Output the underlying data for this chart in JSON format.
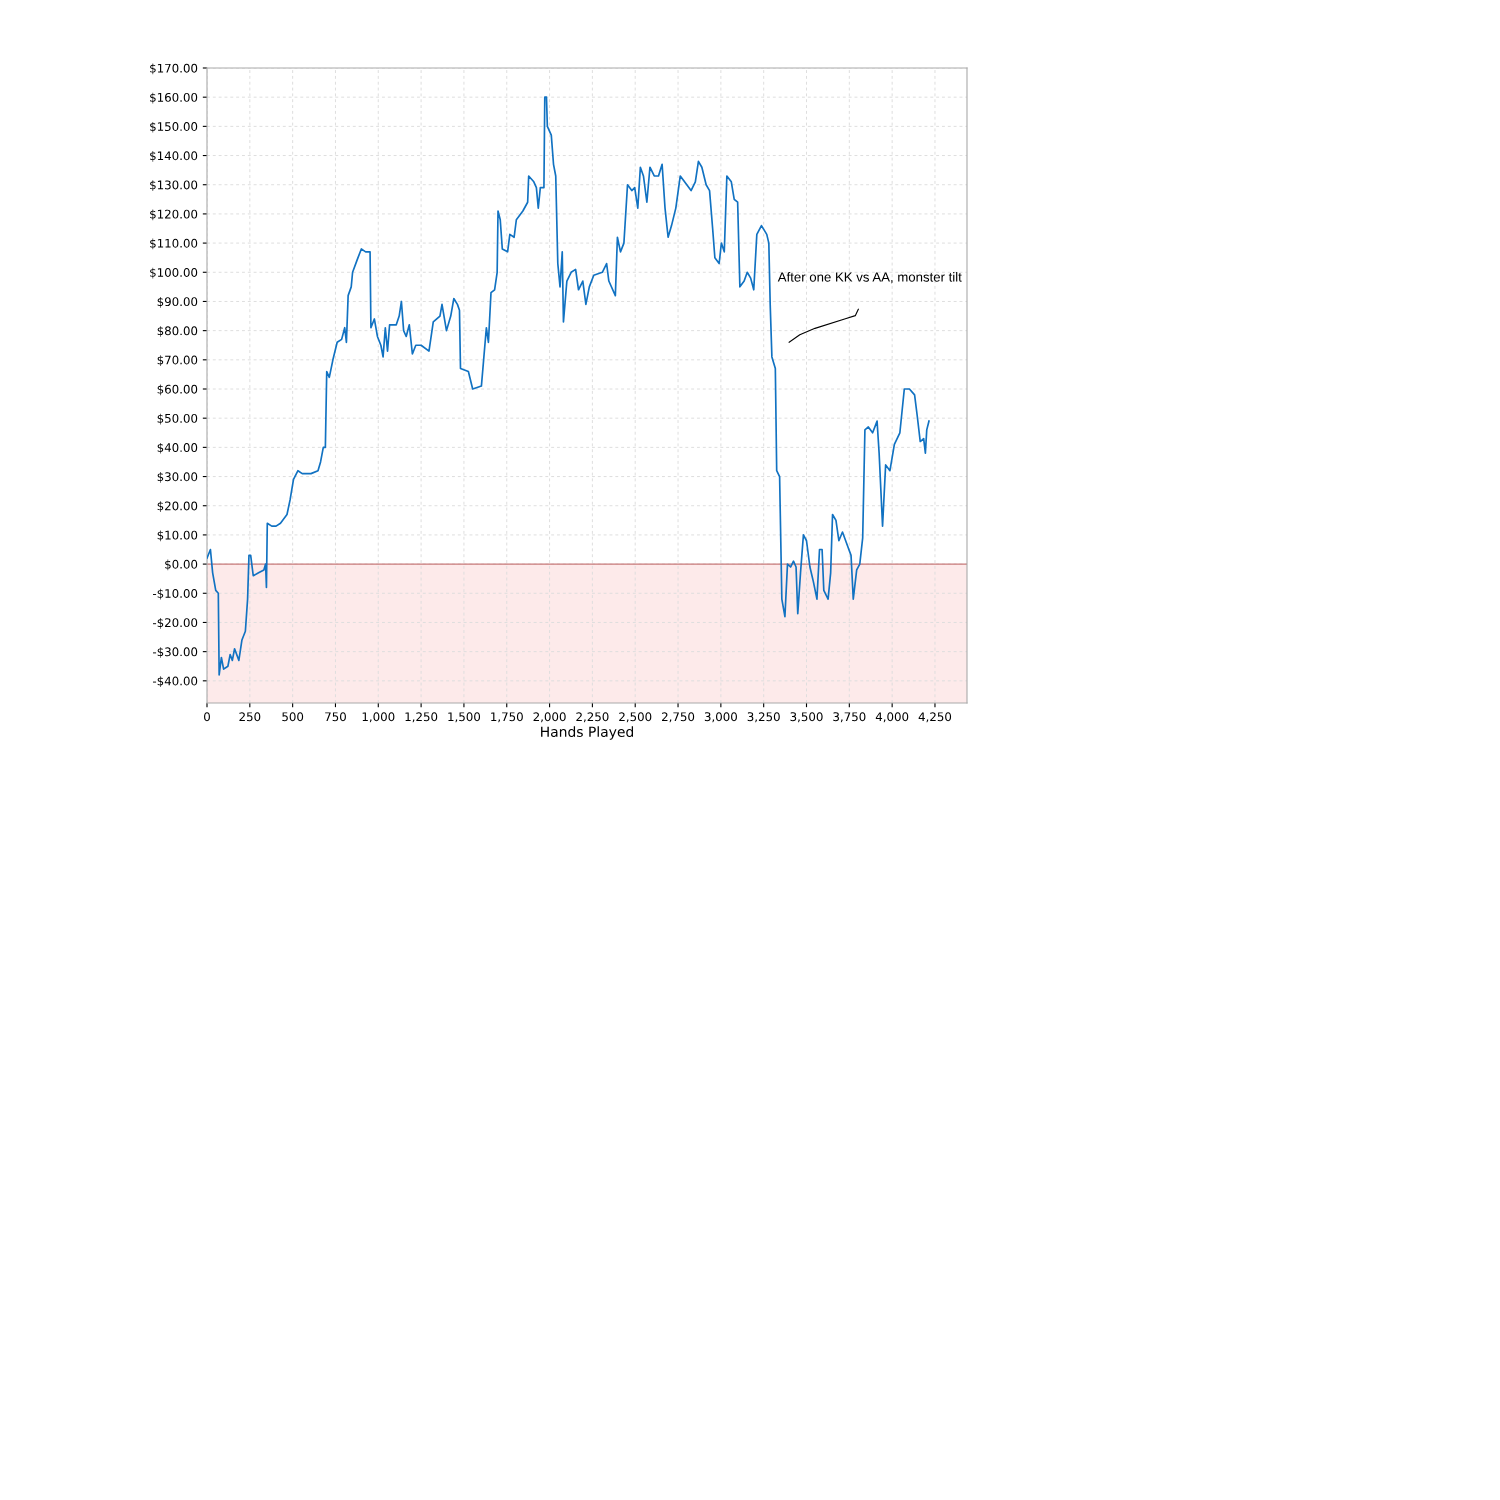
{
  "chart_data": {
    "type": "line",
    "xlabel": "Hands Played",
    "x": [
      0,
      20,
      33,
      51,
      66,
      71,
      84,
      97,
      122,
      135,
      148,
      161,
      186,
      204,
      224,
      237,
      245,
      255,
      270,
      301,
      332,
      342,
      347,
      352,
      378,
      403,
      429,
      467,
      485,
      505,
      531,
      556,
      607,
      648,
      663,
      679,
      691,
      699,
      714,
      735,
      760,
      786,
      804,
      814,
      824,
      842,
      850,
      875,
      901,
      926,
      952,
      957,
      977,
      995,
      1015,
      1028,
      1041,
      1054,
      1066,
      1105,
      1122,
      1135,
      1148,
      1163,
      1181,
      1199,
      1219,
      1250,
      1296,
      1321,
      1360,
      1372,
      1398,
      1423,
      1441,
      1462,
      1474,
      1480,
      1526,
      1551,
      1602,
      1615,
      1631,
      1643,
      1658,
      1679,
      1694,
      1699,
      1712,
      1724,
      1755,
      1768,
      1793,
      1806,
      1844,
      1872,
      1878,
      1908,
      1923,
      1934,
      1946,
      1967,
      1972,
      1982,
      1987,
      2010,
      2023,
      2036,
      2048,
      2061,
      2074,
      2081,
      2101,
      2126,
      2152,
      2169,
      2194,
      2212,
      2232,
      2258,
      2308,
      2333,
      2346,
      2384,
      2396,
      2414,
      2434,
      2455,
      2480,
      2497,
      2515,
      2530,
      2548,
      2568,
      2586,
      2611,
      2636,
      2657,
      2674,
      2692,
      2712,
      2737,
      2763,
      2788,
      2826,
      2851,
      2869,
      2889,
      2914,
      2934,
      2952,
      2965,
      2990,
      3003,
      3020,
      3035,
      3061,
      3078,
      3098,
      3111,
      3136,
      3154,
      3174,
      3192,
      3210,
      3237,
      3268,
      3280,
      3288,
      3298,
      3318,
      3326,
      3343,
      3356,
      3374,
      3389,
      3407,
      3424,
      3439,
      3449,
      3465,
      3482,
      3500,
      3520,
      3540,
      3561,
      3576,
      3591,
      3601,
      3626,
      3641,
      3652,
      3672,
      3689,
      3710,
      3735,
      3760,
      3773,
      3793,
      3811,
      3828,
      3841,
      3861,
      3886,
      3912,
      3924,
      3944,
      3962,
      3987,
      4013,
      4045,
      4071,
      4101,
      4131,
      4146,
      4164,
      4184,
      4194,
      4202,
      4215
    ],
    "series": [
      {
        "color": "#1172c2",
        "values": [
          2,
          5,
          -3,
          -9,
          -10,
          -38,
          -32,
          -36,
          -35,
          -31,
          -33,
          -29,
          -33,
          -26,
          -23,
          -12,
          3,
          3,
          -4,
          -3,
          -2,
          0,
          -8,
          14,
          13,
          13,
          14,
          17,
          22,
          29,
          32,
          31,
          31,
          32,
          35,
          40,
          40,
          66,
          64,
          70,
          76,
          77,
          81,
          76,
          92,
          95,
          100,
          104,
          108,
          107,
          107,
          81,
          84,
          78,
          75,
          71,
          81,
          73,
          82,
          82,
          85,
          90,
          80,
          78,
          82,
          72,
          75,
          75,
          73,
          83,
          85,
          89,
          80,
          85,
          91,
          89,
          87,
          67,
          66,
          60,
          61,
          70,
          81,
          76,
          93,
          94,
          100,
          121,
          118,
          108,
          107,
          113,
          112,
          118,
          121,
          124,
          133,
          131,
          129,
          122,
          129,
          129,
          160,
          160,
          150,
          147,
          137,
          133,
          103,
          95,
          107,
          83,
          97,
          100,
          101,
          94,
          97,
          89,
          95,
          99,
          100,
          103,
          97,
          92,
          112,
          107,
          110,
          130,
          128,
          129,
          122,
          136,
          133,
          124,
          136,
          133,
          133,
          137,
          122,
          112,
          116,
          122,
          133,
          131,
          128,
          131,
          138,
          136,
          130,
          128,
          115,
          105,
          103,
          110,
          107,
          133,
          131,
          125,
          124,
          95,
          97,
          100,
          98,
          94,
          113,
          116,
          113,
          110,
          89,
          71,
          67,
          32,
          30,
          -12,
          -18,
          0,
          -1,
          1,
          -1,
          -17,
          -3,
          10,
          8,
          -1,
          -6,
          -12,
          5,
          5,
          -9,
          -12,
          -3,
          17,
          15,
          8,
          11,
          7,
          3,
          -12,
          -2,
          0,
          9,
          46,
          47,
          45,
          49,
          38,
          13,
          34,
          32,
          41,
          45,
          60,
          60,
          58,
          51,
          42,
          43,
          38,
          46,
          49
        ]
      }
    ],
    "xlim": [
      0,
      4437
    ],
    "ylim": [
      -47.6,
      170
    ],
    "xticks": [
      0,
      250,
      500,
      750,
      {
        "value": 1000,
        "label": "1,000"
      },
      {
        "value": 1250,
        "label": "1,250"
      },
      {
        "value": 1500,
        "label": "1,500"
      },
      {
        "value": 1750,
        "label": "1,750"
      },
      {
        "value": 2000,
        "label": "2,000"
      },
      {
        "value": 2250,
        "label": "2,250"
      },
      {
        "value": 2500,
        "label": "2,500"
      },
      {
        "value": 2750,
        "label": "2,750"
      },
      {
        "value": 3000,
        "label": "3,000"
      },
      {
        "value": 3250,
        "label": "3,250"
      },
      {
        "value": 3500,
        "label": "3,500"
      },
      {
        "value": 3750,
        "label": "3,750"
      },
      {
        "value": 4000,
        "label": "4,000"
      },
      {
        "value": 4250,
        "label": "4,250"
      }
    ],
    "yticks": [
      {
        "value": -40,
        "label": "-$40.00"
      },
      {
        "value": -30,
        "label": "-$30.00"
      },
      {
        "value": -20,
        "label": "-$20.00"
      },
      {
        "value": -10,
        "label": "-$10.00"
      },
      {
        "value": 0,
        "label": "$0.00"
      },
      {
        "value": 10,
        "label": "$10.00"
      },
      {
        "value": 20,
        "label": "$20.00"
      },
      {
        "value": 30,
        "label": "$30.00"
      },
      {
        "value": 40,
        "label": "$40.00"
      },
      {
        "value": 50,
        "label": "$50.00"
      },
      {
        "value": 60,
        "label": "$60.00"
      },
      {
        "value": 70,
        "label": "$70.00"
      },
      {
        "value": 80,
        "label": "$80.00"
      },
      {
        "value": 90,
        "label": "$90.00"
      },
      {
        "value": 100,
        "label": "$100.00"
      },
      {
        "value": 110,
        "label": "$110.00"
      },
      {
        "value": 120,
        "label": "$120.00"
      },
      {
        "value": 130,
        "label": "$130.00"
      },
      {
        "value": 140,
        "label": "$140.00"
      },
      {
        "value": 150,
        "label": "$150.00"
      },
      {
        "value": 160,
        "label": "$160.00"
      },
      {
        "value": 170,
        "label": "$170.00"
      }
    ],
    "grid": true,
    "line_style": "solid",
    "bands": [
      {
        "axis": "y",
        "from": -47.6,
        "to": 0,
        "color": "#fdeaea"
      }
    ],
    "ref_lines": [
      {
        "axis": "y",
        "value": 0,
        "color": "#c87a7a"
      }
    ],
    "annotations": [
      "After one KK vs AA, monster tilt"
    ]
  }
}
